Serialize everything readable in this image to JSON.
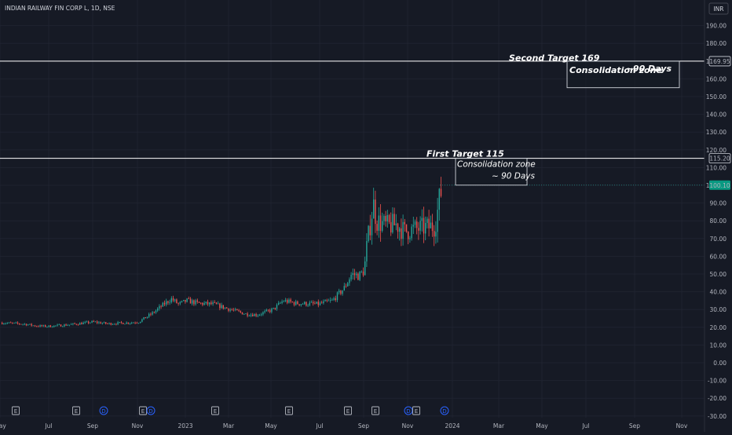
{
  "header": {
    "symbol": "INDIAN RAILWAY FIN CORP L, 1D, NSE",
    "currency": "INR"
  },
  "colors": {
    "up": "#26a69a",
    "down": "#ef5350",
    "line": "#ffffff",
    "background": "#161a25",
    "grid": "#1f2330",
    "last_price_badge": "#089981"
  },
  "chart_data": {
    "type": "candlestick",
    "x_ticks": [
      "May",
      "Jul",
      "Sep",
      "Nov",
      "2023",
      "Mar",
      "May",
      "Jul",
      "Sep",
      "Nov",
      "2024",
      "Mar",
      "May",
      "Jul",
      "Sep",
      "Nov"
    ],
    "y_ticks": [
      -30,
      -20,
      -10,
      0,
      10,
      20,
      30,
      40,
      50,
      60,
      70,
      80,
      90,
      100,
      110,
      120,
      130,
      140,
      150,
      160,
      170,
      180,
      190
    ],
    "ylim": [
      -31,
      195
    ],
    "grid": true,
    "price_series": [
      {
        "x": "2022-05-01",
        "y": 22.5
      },
      {
        "x": "2022-06-01",
        "y": 21.8
      },
      {
        "x": "2022-06-15",
        "y": 20.8
      },
      {
        "x": "2022-07-01",
        "y": 20.5
      },
      {
        "x": "2022-08-01",
        "y": 21.5
      },
      {
        "x": "2022-09-01",
        "y": 23.0
      },
      {
        "x": "2022-09-20",
        "y": 22.0
      },
      {
        "x": "2022-10-15",
        "y": 22.5
      },
      {
        "x": "2022-11-01",
        "y": 23.0
      },
      {
        "x": "2022-11-20",
        "y": 28.0
      },
      {
        "x": "2022-12-05",
        "y": 33.0
      },
      {
        "x": "2022-12-15",
        "y": 36.0
      },
      {
        "x": "2022-12-25",
        "y": 33.0
      },
      {
        "x": "2023-01-05",
        "y": 35.0
      },
      {
        "x": "2023-01-20",
        "y": 33.5
      },
      {
        "x": "2023-02-10",
        "y": 33.0
      },
      {
        "x": "2023-03-01",
        "y": 30.5
      },
      {
        "x": "2023-03-25",
        "y": 27.5
      },
      {
        "x": "2023-04-10",
        "y": 27.0
      },
      {
        "x": "2023-05-01",
        "y": 30.0
      },
      {
        "x": "2023-05-15",
        "y": 35.0
      },
      {
        "x": "2023-06-01",
        "y": 33.5
      },
      {
        "x": "2023-07-01",
        "y": 33.0
      },
      {
        "x": "2023-07-20",
        "y": 35.0
      },
      {
        "x": "2023-08-05",
        "y": 42.0
      },
      {
        "x": "2023-08-15",
        "y": 50.0
      },
      {
        "x": "2023-08-25",
        "y": 49.0
      },
      {
        "x": "2023-09-01",
        "y": 52.0
      },
      {
        "x": "2023-09-05",
        "y": 68.0
      },
      {
        "x": "2023-09-10",
        "y": 80.0
      },
      {
        "x": "2023-09-13",
        "y": 90.0
      },
      {
        "x": "2023-09-18",
        "y": 80.0
      },
      {
        "x": "2023-10-01",
        "y": 77.0
      },
      {
        "x": "2023-10-15",
        "y": 78.0
      },
      {
        "x": "2023-10-25",
        "y": 74.0
      },
      {
        "x": "2023-11-05",
        "y": 75.0
      },
      {
        "x": "2023-11-20",
        "y": 76.0
      },
      {
        "x": "2023-12-05",
        "y": 77.0
      },
      {
        "x": "2023-12-10",
        "y": 88.0
      },
      {
        "x": "2023-12-15",
        "y": 100.1
      }
    ],
    "horizontal_lines": [
      {
        "price": 169.95,
        "label": "169.95"
      },
      {
        "price": 115.2,
        "label": "115.20"
      },
      {
        "price": 100.1,
        "label": "100.10"
      }
    ],
    "annotations": [
      {
        "text": "Second Target   169",
        "at_price": 172
      },
      {
        "text": "First Target 115",
        "at_price": 118
      }
    ],
    "boxes": [
      {
        "line1": "Consolidation zone",
        "line2": "~ 90 Days",
        "top_price": 115.2,
        "bottom_price": 100.1
      },
      {
        "line1": "Consolidation zone",
        "line2": "~90 Days",
        "top_price": 169.95,
        "bottom_price": 155
      }
    ],
    "event_markers": [
      "E",
      "E",
      "D",
      "E",
      "D",
      "E",
      "E",
      "E",
      "E",
      "D",
      "E",
      "D"
    ]
  }
}
